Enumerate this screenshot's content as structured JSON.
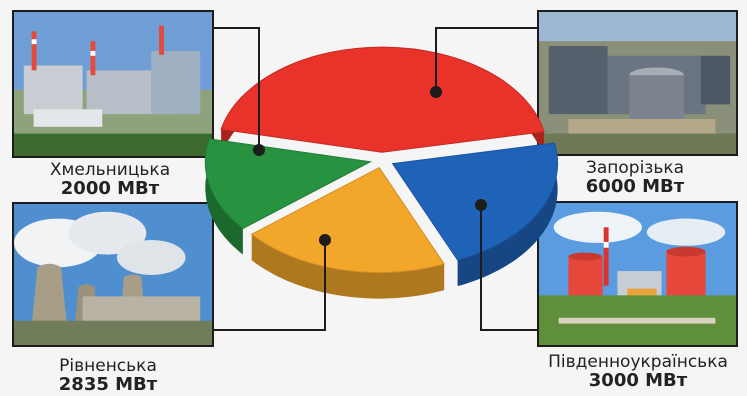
{
  "chart_data": {
    "type": "pie",
    "unit": "МВт",
    "series": [
      {
        "name": "Запорізька",
        "value": 6000,
        "display": "6000 МВт",
        "color": "#e8322a"
      },
      {
        "name": "Південноукраїнська",
        "value": 3000,
        "display": "3000 МВт",
        "color": "#1f63b8"
      },
      {
        "name": "Рівненська",
        "value": 2835,
        "display": "2835 МВт",
        "color": "#f2a62a"
      },
      {
        "name": "Хмельницька",
        "value": 2000,
        "display": "2000 МВт",
        "color": "#27923f"
      }
    ]
  },
  "stations": {
    "khmelnytska": {
      "name": "Хмельницька",
      "power": "2000 МВт"
    },
    "zaporizka": {
      "name": "Запорізька",
      "power": "6000 МВт"
    },
    "rivnenska": {
      "name": "Рівненська",
      "power": "2835 МВт"
    },
    "pivdennoukrainska": {
      "name": "Південноукраїнська",
      "power": "3000 МВт"
    }
  }
}
